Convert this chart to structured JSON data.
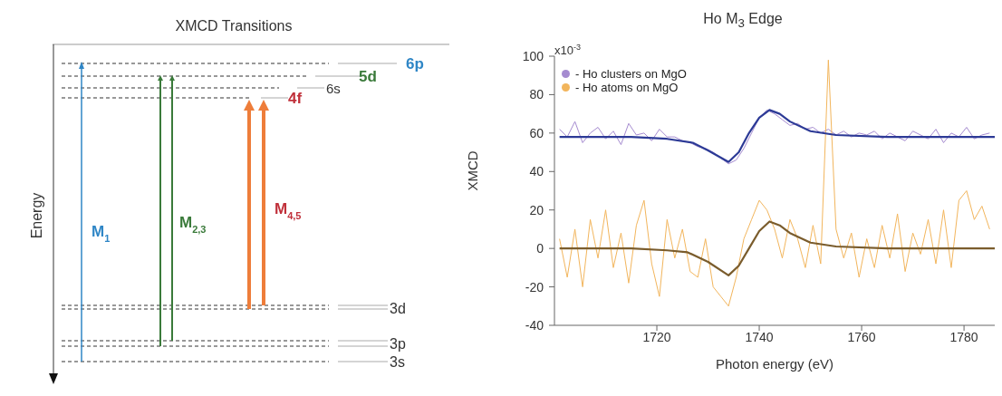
{
  "chart_data": [
    {
      "type": "other",
      "title": "XMCD Transitions",
      "ylabel": "Energy",
      "annotations": [
        "6p",
        "5d",
        "6s",
        "4f",
        "3d",
        "3p",
        "3s",
        "M$_{1}$",
        "M$_{2,3}$",
        "M$_{4,5}$"
      ]
    },
    {
      "type": "line",
      "title": "Ho M$_{3}$ Edge",
      "xlabel": "Photon energy (eV)",
      "ylabel": "XMCD",
      "xlim": [
        1700,
        1786
      ],
      "xticks": [
        1720,
        1740,
        1760,
        1780
      ],
      "ylim": [
        -40,
        100
      ],
      "yticks": [
        -40,
        -20,
        0,
        20,
        40,
        60,
        80,
        100
      ],
      "annotations": [
        "x10$^{-3}$"
      ],
      "grid": false,
      "legend": "top left",
      "marker": "none",
      "line_style": "solid",
      "x": [
        1701,
        1702.5,
        1704,
        1705.5,
        1707,
        1708.5,
        1710,
        1711.5,
        1713,
        1714.5,
        1716,
        1717.5,
        1719,
        1720.5,
        1722,
        1723.5,
        1725,
        1726.5,
        1728,
        1729.5,
        1731,
        1732.5,
        1734,
        1735.5,
        1737,
        1738.5,
        1740,
        1741.5,
        1743,
        1744.5,
        1746,
        1747.5,
        1749,
        1750.5,
        1752,
        1753.5,
        1755,
        1756.5,
        1758,
        1759.5,
        1761,
        1762.5,
        1764,
        1765.5,
        1767,
        1768.5,
        1770,
        1771.5,
        1773,
        1774.5,
        1776,
        1777.5,
        1779,
        1780.5,
        1782,
        1783.5,
        1785
      ],
      "series": [
        {
          "name": "- Ho clusters on MgO",
          "color": "#a58bd0",
          "values": [
            62,
            58,
            66,
            55,
            60,
            63,
            57,
            61,
            54,
            65,
            59,
            60,
            56,
            62,
            58,
            58,
            56,
            55,
            53,
            52,
            50,
            47,
            44,
            46,
            52,
            60,
            68,
            72,
            70,
            67,
            64,
            65,
            62,
            63,
            60,
            62,
            59,
            61,
            58,
            60,
            59,
            61,
            57,
            60,
            58,
            56,
            61,
            59,
            57,
            62,
            55,
            60,
            58,
            63,
            57,
            59,
            60
          ]
        },
        {
          "name": "- Ho atoms on MgO",
          "color": "#f2b55c",
          "values": [
            5,
            -15,
            10,
            -20,
            15,
            -5,
            20,
            -10,
            8,
            -18,
            12,
            25,
            -8,
            -25,
            15,
            -5,
            10,
            -12,
            -15,
            5,
            -20,
            -25,
            -30,
            -15,
            5,
            15,
            25,
            20,
            10,
            -5,
            15,
            5,
            -10,
            12,
            -8,
            98,
            10,
            -5,
            8,
            -15,
            5,
            -10,
            12,
            -5,
            18,
            -12,
            8,
            -3,
            15,
            -8,
            20,
            -10,
            25,
            30,
            15,
            22,
            10
          ]
        },
        {
          "color": "#2c3a96",
          "x": [
            1701,
            1715,
            1722,
            1727,
            1730,
            1734,
            1736,
            1738,
            1740,
            1742,
            1744,
            1746,
            1750,
            1755,
            1765,
            1786
          ],
          "values": [
            58,
            58,
            57,
            55,
            51,
            45,
            50,
            60,
            68,
            72,
            70,
            66,
            61,
            59,
            58,
            58
          ]
        },
        {
          "color": "#7a5c2c",
          "x": [
            1701,
            1715,
            1722,
            1726,
            1730,
            1734,
            1736,
            1738,
            1740,
            1742,
            1744,
            1746,
            1750,
            1755,
            1765,
            1786
          ],
          "values": [
            0,
            0,
            -1,
            -2,
            -7,
            -14,
            -9,
            0,
            9,
            14,
            12,
            8,
            3,
            1,
            0,
            0
          ]
        }
      ]
    }
  ]
}
